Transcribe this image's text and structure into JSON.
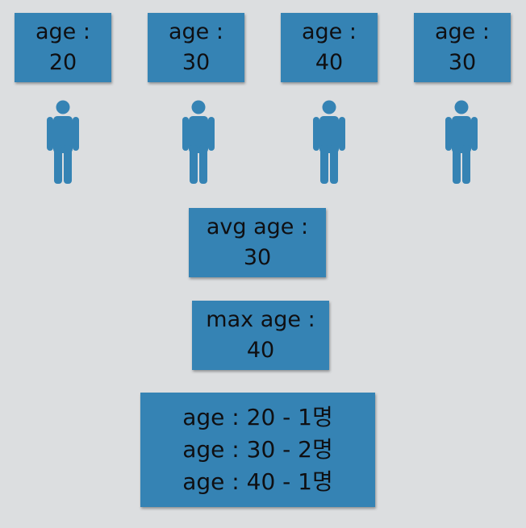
{
  "people": [
    {
      "label": "age :",
      "value": "20"
    },
    {
      "label": "age :",
      "value": "30"
    },
    {
      "label": "age :",
      "value": "40"
    },
    {
      "label": "age :",
      "value": "30"
    }
  ],
  "avg": {
    "label": "avg age :",
    "value": "30"
  },
  "max": {
    "label": "max age :",
    "value": "40"
  },
  "distribution": [
    "age : 20 - 1명",
    "age : 30 - 2명",
    "age : 40 - 1명"
  ],
  "colors": {
    "card": "#3583b4",
    "person": "#3583b4",
    "background": "#dcdee0"
  }
}
